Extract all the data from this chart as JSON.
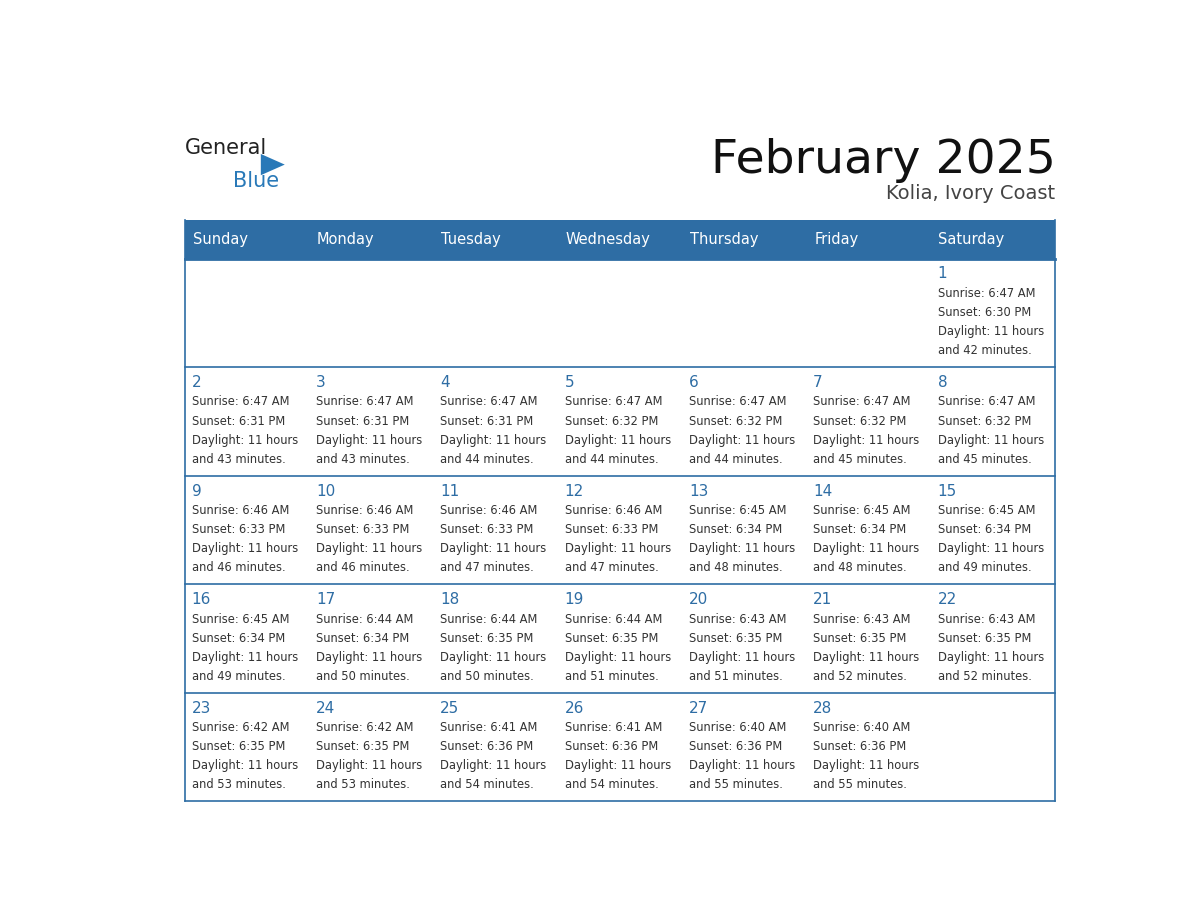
{
  "title": "February 2025",
  "subtitle": "Kolia, Ivory Coast",
  "header_color": "#2E6DA4",
  "header_text_color": "#FFFFFF",
  "day_number_color": "#2E6DA4",
  "border_color": "#2E6DA4",
  "days_of_week": [
    "Sunday",
    "Monday",
    "Tuesday",
    "Wednesday",
    "Thursday",
    "Friday",
    "Saturday"
  ],
  "calendar_data": [
    [
      null,
      null,
      null,
      null,
      null,
      null,
      {
        "day": 1,
        "sunrise": "6:47 AM",
        "sunset": "6:30 PM",
        "daylight_hours": 11,
        "daylight_minutes": 42
      }
    ],
    [
      {
        "day": 2,
        "sunrise": "6:47 AM",
        "sunset": "6:31 PM",
        "daylight_hours": 11,
        "daylight_minutes": 43
      },
      {
        "day": 3,
        "sunrise": "6:47 AM",
        "sunset": "6:31 PM",
        "daylight_hours": 11,
        "daylight_minutes": 43
      },
      {
        "day": 4,
        "sunrise": "6:47 AM",
        "sunset": "6:31 PM",
        "daylight_hours": 11,
        "daylight_minutes": 44
      },
      {
        "day": 5,
        "sunrise": "6:47 AM",
        "sunset": "6:32 PM",
        "daylight_hours": 11,
        "daylight_minutes": 44
      },
      {
        "day": 6,
        "sunrise": "6:47 AM",
        "sunset": "6:32 PM",
        "daylight_hours": 11,
        "daylight_minutes": 44
      },
      {
        "day": 7,
        "sunrise": "6:47 AM",
        "sunset": "6:32 PM",
        "daylight_hours": 11,
        "daylight_minutes": 45
      },
      {
        "day": 8,
        "sunrise": "6:47 AM",
        "sunset": "6:32 PM",
        "daylight_hours": 11,
        "daylight_minutes": 45
      }
    ],
    [
      {
        "day": 9,
        "sunrise": "6:46 AM",
        "sunset": "6:33 PM",
        "daylight_hours": 11,
        "daylight_minutes": 46
      },
      {
        "day": 10,
        "sunrise": "6:46 AM",
        "sunset": "6:33 PM",
        "daylight_hours": 11,
        "daylight_minutes": 46
      },
      {
        "day": 11,
        "sunrise": "6:46 AM",
        "sunset": "6:33 PM",
        "daylight_hours": 11,
        "daylight_minutes": 47
      },
      {
        "day": 12,
        "sunrise": "6:46 AM",
        "sunset": "6:33 PM",
        "daylight_hours": 11,
        "daylight_minutes": 47
      },
      {
        "day": 13,
        "sunrise": "6:45 AM",
        "sunset": "6:34 PM",
        "daylight_hours": 11,
        "daylight_minutes": 48
      },
      {
        "day": 14,
        "sunrise": "6:45 AM",
        "sunset": "6:34 PM",
        "daylight_hours": 11,
        "daylight_minutes": 48
      },
      {
        "day": 15,
        "sunrise": "6:45 AM",
        "sunset": "6:34 PM",
        "daylight_hours": 11,
        "daylight_minutes": 49
      }
    ],
    [
      {
        "day": 16,
        "sunrise": "6:45 AM",
        "sunset": "6:34 PM",
        "daylight_hours": 11,
        "daylight_minutes": 49
      },
      {
        "day": 17,
        "sunrise": "6:44 AM",
        "sunset": "6:34 PM",
        "daylight_hours": 11,
        "daylight_minutes": 50
      },
      {
        "day": 18,
        "sunrise": "6:44 AM",
        "sunset": "6:35 PM",
        "daylight_hours": 11,
        "daylight_minutes": 50
      },
      {
        "day": 19,
        "sunrise": "6:44 AM",
        "sunset": "6:35 PM",
        "daylight_hours": 11,
        "daylight_minutes": 51
      },
      {
        "day": 20,
        "sunrise": "6:43 AM",
        "sunset": "6:35 PM",
        "daylight_hours": 11,
        "daylight_minutes": 51
      },
      {
        "day": 21,
        "sunrise": "6:43 AM",
        "sunset": "6:35 PM",
        "daylight_hours": 11,
        "daylight_minutes": 52
      },
      {
        "day": 22,
        "sunrise": "6:43 AM",
        "sunset": "6:35 PM",
        "daylight_hours": 11,
        "daylight_minutes": 52
      }
    ],
    [
      {
        "day": 23,
        "sunrise": "6:42 AM",
        "sunset": "6:35 PM",
        "daylight_hours": 11,
        "daylight_minutes": 53
      },
      {
        "day": 24,
        "sunrise": "6:42 AM",
        "sunset": "6:35 PM",
        "daylight_hours": 11,
        "daylight_minutes": 53
      },
      {
        "day": 25,
        "sunrise": "6:41 AM",
        "sunset": "6:36 PM",
        "daylight_hours": 11,
        "daylight_minutes": 54
      },
      {
        "day": 26,
        "sunrise": "6:41 AM",
        "sunset": "6:36 PM",
        "daylight_hours": 11,
        "daylight_minutes": 54
      },
      {
        "day": 27,
        "sunrise": "6:40 AM",
        "sunset": "6:36 PM",
        "daylight_hours": 11,
        "daylight_minutes": 55
      },
      {
        "day": 28,
        "sunrise": "6:40 AM",
        "sunset": "6:36 PM",
        "daylight_hours": 11,
        "daylight_minutes": 55
      },
      null
    ]
  ]
}
